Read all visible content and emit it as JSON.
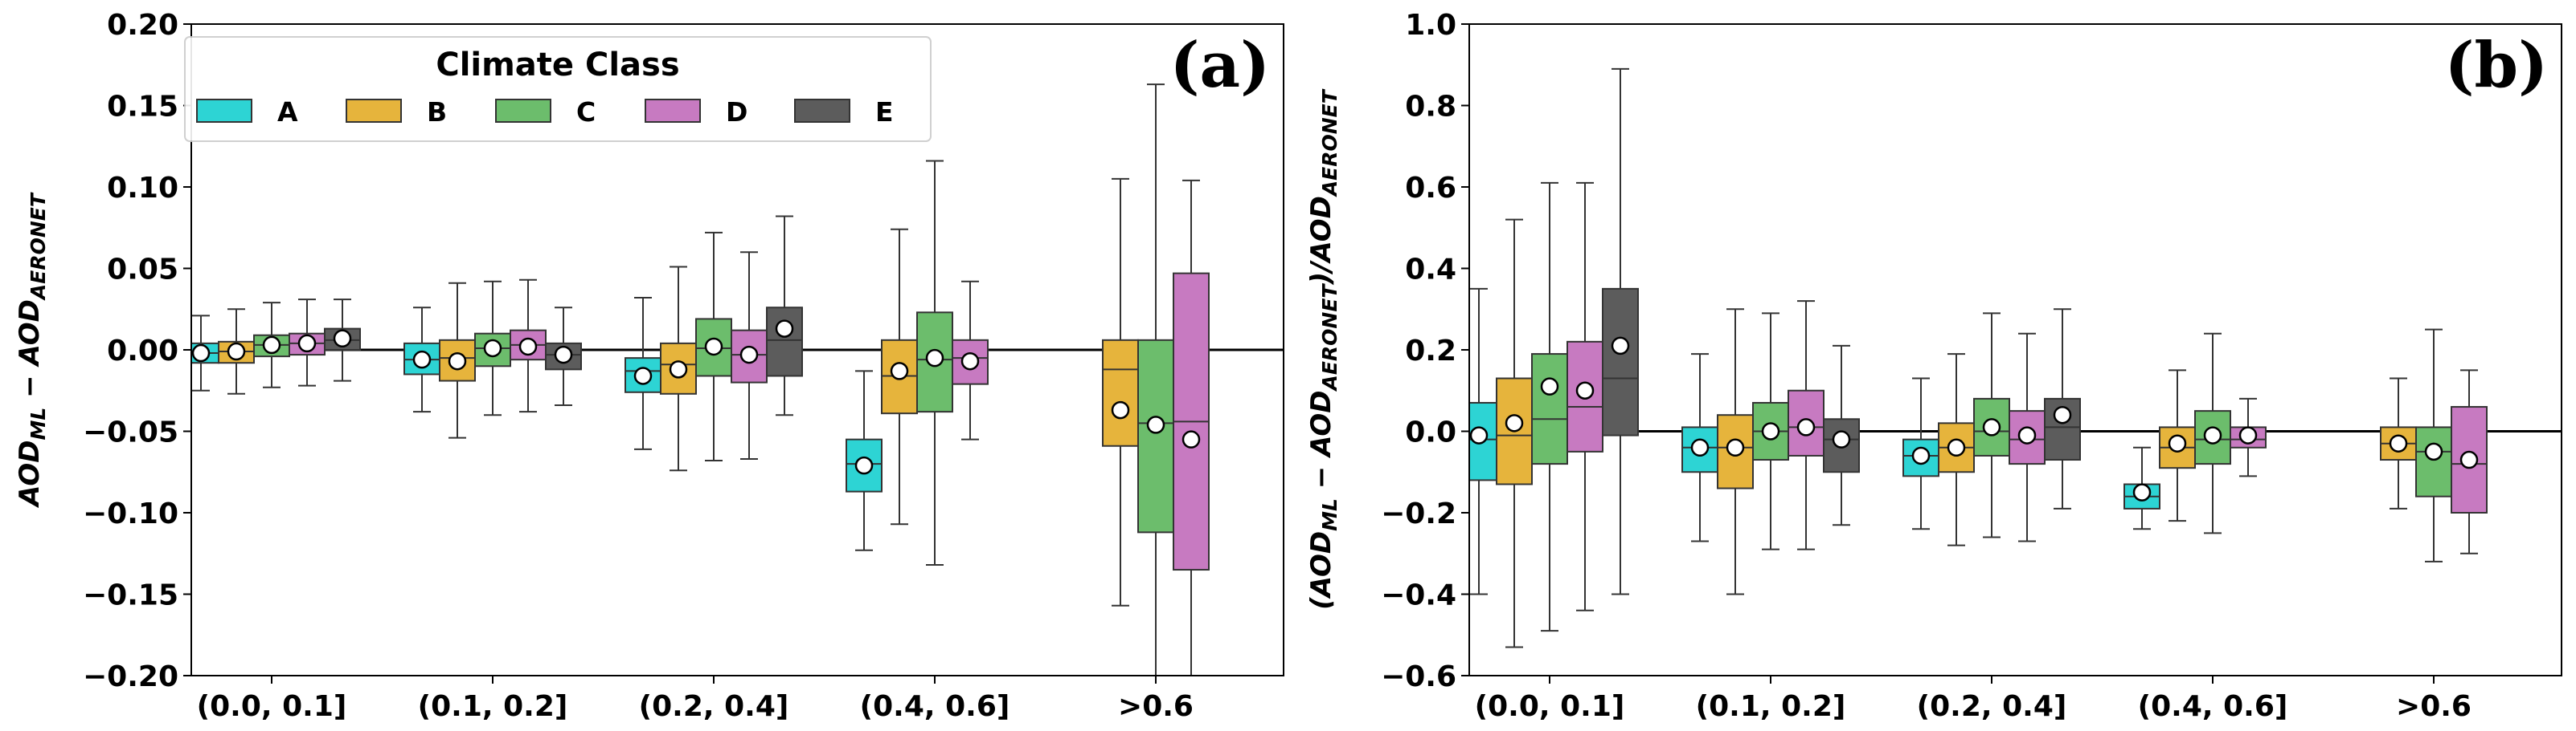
{
  "chart_data": [
    {
      "type": "box",
      "panel_label": "(a)",
      "ylabel": "AOD_ML − AOD_AERONET",
      "ylabel_parts": {
        "a": "AOD",
        "a_sub": "ML",
        "b": " − AOD",
        "b_sub": "AERONET"
      },
      "ylim": [
        -0.2,
        0.2
      ],
      "yticks": [
        -0.2,
        -0.15,
        -0.1,
        -0.05,
        0.0,
        0.05,
        0.1,
        0.15,
        0.2
      ],
      "ytick_labels": [
        "−0.20",
        "−0.15",
        "−0.10",
        "−0.05",
        "0.00",
        "0.05",
        "0.10",
        "0.15",
        "0.20"
      ],
      "categories": [
        "(0.0, 0.1]",
        "(0.1, 0.2]",
        "(0.2, 0.4]",
        "(0.4, 0.6]",
        ">0.6"
      ],
      "zero_line": 0,
      "legend": {
        "title": "Climate Class",
        "placement": "upper-left"
      },
      "series": [
        {
          "name": "A",
          "color": "#2dd4d4",
          "boxes": [
            {
              "wlo": -0.025,
              "q1": -0.008,
              "median": -0.002,
              "q3": 0.004,
              "whi": 0.021,
              "mean": -0.002
            },
            {
              "wlo": -0.038,
              "q1": -0.015,
              "median": -0.006,
              "q3": 0.004,
              "whi": 0.026,
              "mean": -0.006
            },
            {
              "wlo": -0.061,
              "q1": -0.026,
              "median": -0.013,
              "q3": -0.005,
              "whi": 0.032,
              "mean": -0.016
            },
            {
              "wlo": -0.123,
              "q1": -0.087,
              "median": -0.07,
              "q3": -0.055,
              "whi": -0.013,
              "mean": -0.071
            },
            null
          ]
        },
        {
          "name": "B",
          "color": "#e6b43c",
          "boxes": [
            {
              "wlo": -0.027,
              "q1": -0.008,
              "median": -0.001,
              "q3": 0.005,
              "whi": 0.025,
              "mean": -0.001
            },
            {
              "wlo": -0.054,
              "q1": -0.019,
              "median": -0.005,
              "q3": 0.006,
              "whi": 0.041,
              "mean": -0.007
            },
            {
              "wlo": -0.074,
              "q1": -0.027,
              "median": -0.009,
              "q3": 0.004,
              "whi": 0.051,
              "mean": -0.012
            },
            {
              "wlo": -0.107,
              "q1": -0.039,
              "median": -0.016,
              "q3": 0.006,
              "whi": 0.074,
              "mean": -0.013
            },
            {
              "wlo": -0.157,
              "q1": -0.059,
              "median": -0.012,
              "q3": 0.006,
              "whi": 0.105,
              "mean": -0.037
            }
          ]
        },
        {
          "name": "C",
          "color": "#6cbd6c",
          "boxes": [
            {
              "wlo": -0.023,
              "q1": -0.004,
              "median": 0.003,
              "q3": 0.009,
              "whi": 0.029,
              "mean": 0.003
            },
            {
              "wlo": -0.04,
              "q1": -0.01,
              "median": 0.001,
              "q3": 0.01,
              "whi": 0.042,
              "mean": 0.001
            },
            {
              "wlo": -0.068,
              "q1": -0.016,
              "median": 0.001,
              "q3": 0.019,
              "whi": 0.072,
              "mean": 0.002
            },
            {
              "wlo": -0.132,
              "q1": -0.038,
              "median": -0.006,
              "q3": 0.023,
              "whi": 0.116,
              "mean": -0.005
            },
            {
              "wlo": -0.2,
              "q1": -0.112,
              "median": -0.045,
              "q3": 0.006,
              "whi": 0.163,
              "mean": -0.046
            }
          ]
        },
        {
          "name": "D",
          "color": "#c77ac1",
          "boxes": [
            {
              "wlo": -0.022,
              "q1": -0.003,
              "median": 0.004,
              "q3": 0.01,
              "whi": 0.031,
              "mean": 0.004
            },
            {
              "wlo": -0.038,
              "q1": -0.006,
              "median": 0.003,
              "q3": 0.012,
              "whi": 0.043,
              "mean": 0.002
            },
            {
              "wlo": -0.067,
              "q1": -0.02,
              "median": -0.003,
              "q3": 0.012,
              "whi": 0.06,
              "mean": -0.003
            },
            {
              "wlo": -0.055,
              "q1": -0.021,
              "median": -0.005,
              "q3": 0.006,
              "whi": 0.042,
              "mean": -0.007
            },
            {
              "wlo": -0.2,
              "q1": -0.135,
              "median": -0.044,
              "q3": 0.047,
              "whi": 0.104,
              "mean": -0.055
            }
          ]
        },
        {
          "name": "E",
          "color": "#5c5c5c",
          "boxes": [
            {
              "wlo": -0.019,
              "q1": 0.0,
              "median": 0.006,
              "q3": 0.013,
              "whi": 0.031,
              "mean": 0.007
            },
            {
              "wlo": -0.034,
              "q1": -0.012,
              "median": -0.003,
              "q3": 0.004,
              "whi": 0.026,
              "mean": -0.003
            },
            {
              "wlo": -0.04,
              "q1": -0.016,
              "median": 0.006,
              "q3": 0.026,
              "whi": 0.082,
              "mean": 0.013
            },
            null,
            null
          ]
        }
      ]
    },
    {
      "type": "box",
      "panel_label": "(b)",
      "ylabel": "(AOD_ML − AOD_AERONET)/AOD_AERONET",
      "ylabel_parts": {
        "a": "(AOD",
        "a_sub": "ML",
        "b": " − AOD",
        "b_sub": "AERONET",
        "c": ")/AOD",
        "c_sub": "AERONET"
      },
      "ylim": [
        -0.6,
        1.0
      ],
      "yticks": [
        -0.6,
        -0.4,
        -0.2,
        0.0,
        0.2,
        0.4,
        0.6,
        0.8,
        1.0
      ],
      "ytick_labels": [
        "−0.6",
        "−0.4",
        "−0.2",
        "0.0",
        "0.2",
        "0.4",
        "0.6",
        "0.8",
        "1.0"
      ],
      "categories": [
        "(0.0, 0.1]",
        "(0.1, 0.2]",
        "(0.2, 0.4]",
        "(0.4, 0.6]",
        ">0.6"
      ],
      "zero_line": 0,
      "series": [
        {
          "name": "A",
          "color": "#2dd4d4",
          "boxes": [
            {
              "wlo": -0.4,
              "q1": -0.12,
              "median": -0.02,
              "q3": 0.07,
              "whi": 0.35,
              "mean": -0.01
            },
            {
              "wlo": -0.27,
              "q1": -0.1,
              "median": -0.04,
              "q3": 0.01,
              "whi": 0.19,
              "mean": -0.04
            },
            {
              "wlo": -0.24,
              "q1": -0.11,
              "median": -0.06,
              "q3": -0.02,
              "whi": 0.13,
              "mean": -0.06
            },
            {
              "wlo": -0.24,
              "q1": -0.19,
              "median": -0.16,
              "q3": -0.13,
              "whi": -0.04,
              "mean": -0.15
            },
            null
          ]
        },
        {
          "name": "B",
          "color": "#e6b43c",
          "boxes": [
            {
              "wlo": -0.53,
              "q1": -0.13,
              "median": -0.01,
              "q3": 0.13,
              "whi": 0.52,
              "mean": 0.02
            },
            {
              "wlo": -0.4,
              "q1": -0.14,
              "median": -0.04,
              "q3": 0.04,
              "whi": 0.3,
              "mean": -0.04
            },
            {
              "wlo": -0.28,
              "q1": -0.1,
              "median": -0.04,
              "q3": 0.02,
              "whi": 0.19,
              "mean": -0.04
            },
            {
              "wlo": -0.22,
              "q1": -0.09,
              "median": -0.04,
              "q3": 0.01,
              "whi": 0.15,
              "mean": -0.03
            },
            {
              "wlo": -0.19,
              "q1": -0.07,
              "median": -0.03,
              "q3": 0.01,
              "whi": 0.13,
              "mean": -0.03
            }
          ]
        },
        {
          "name": "C",
          "color": "#6cbd6c",
          "boxes": [
            {
              "wlo": -0.49,
              "q1": -0.08,
              "median": 0.03,
              "q3": 0.19,
              "whi": 0.61,
              "mean": 0.11
            },
            {
              "wlo": -0.29,
              "q1": -0.07,
              "median": 0.0,
              "q3": 0.07,
              "whi": 0.29,
              "mean": 0.0
            },
            {
              "wlo": -0.26,
              "q1": -0.06,
              "median": 0.0,
              "q3": 0.08,
              "whi": 0.29,
              "mean": 0.01
            },
            {
              "wlo": -0.25,
              "q1": -0.08,
              "median": -0.02,
              "q3": 0.05,
              "whi": 0.24,
              "mean": -0.01
            },
            {
              "wlo": -0.32,
              "q1": -0.16,
              "median": -0.05,
              "q3": 0.01,
              "whi": 0.25,
              "mean": -0.05
            }
          ]
        },
        {
          "name": "D",
          "color": "#c77ac1",
          "boxes": [
            {
              "wlo": -0.44,
              "q1": -0.05,
              "median": 0.06,
              "q3": 0.22,
              "whi": 0.61,
              "mean": 0.1
            },
            {
              "wlo": -0.29,
              "q1": -0.06,
              "median": 0.01,
              "q3": 0.1,
              "whi": 0.32,
              "mean": 0.01
            },
            {
              "wlo": -0.27,
              "q1": -0.08,
              "median": -0.02,
              "q3": 0.05,
              "whi": 0.24,
              "mean": -0.01
            },
            {
              "wlo": -0.11,
              "q1": -0.04,
              "median": -0.02,
              "q3": 0.01,
              "whi": 0.08,
              "mean": -0.01
            },
            {
              "wlo": -0.3,
              "q1": -0.2,
              "median": -0.08,
              "q3": 0.06,
              "whi": 0.15,
              "mean": -0.07
            }
          ]
        },
        {
          "name": "E",
          "color": "#5c5c5c",
          "boxes": [
            {
              "wlo": -0.4,
              "q1": -0.01,
              "median": 0.13,
              "q3": 0.35,
              "whi": 0.89,
              "mean": 0.21
            },
            {
              "wlo": -0.23,
              "q1": -0.1,
              "median": -0.02,
              "q3": 0.03,
              "whi": 0.21,
              "mean": -0.02
            },
            {
              "wlo": -0.19,
              "q1": -0.07,
              "median": 0.01,
              "q3": 0.08,
              "whi": 0.3,
              "mean": 0.04
            },
            null,
            null
          ]
        }
      ]
    }
  ]
}
